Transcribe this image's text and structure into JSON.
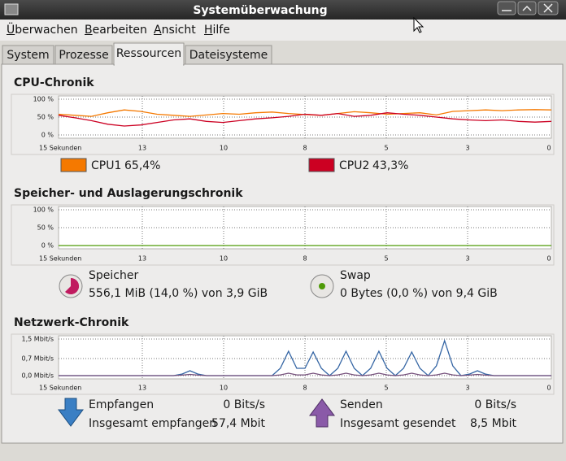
{
  "window": {
    "title": "Systemüberwachung"
  },
  "menu": [
    "Überwachen",
    "Bearbeiten",
    "Ansicht",
    "Hilfe"
  ],
  "tabs": [
    "System",
    "Prozesse",
    "Ressourcen",
    "Dateisysteme"
  ],
  "cpu": {
    "title": "CPU-Chronik",
    "ylim": [
      0,
      100
    ],
    "yticks": [
      {
        "value": 100,
        "label": "100 %"
      },
      {
        "value": 50,
        "label": "50 %"
      },
      {
        "value": 0,
        "label": "0 %"
      }
    ],
    "xlabels": [
      "15 Sekunden",
      "13",
      "10",
      "8",
      "5",
      "3",
      "0"
    ],
    "series": [
      {
        "name": "CPU1",
        "value_label": "65,4%",
        "color": "#f57900",
        "values": [
          58,
          55,
          52,
          62,
          70,
          66,
          58,
          55,
          52,
          56,
          60,
          58,
          62,
          64,
          60,
          57,
          55,
          60,
          65,
          62,
          58,
          60,
          62,
          56,
          66,
          68,
          70,
          68,
          70,
          71,
          70
        ]
      },
      {
        "name": "CPU2",
        "value_label": "43,3%",
        "color": "#cc0022",
        "values": [
          55,
          48,
          40,
          30,
          25,
          28,
          35,
          42,
          45,
          38,
          35,
          40,
          45,
          48,
          52,
          58,
          55,
          60,
          52,
          55,
          62,
          58,
          55,
          50,
          45,
          42,
          40,
          42,
          38,
          36,
          38
        ]
      }
    ]
  },
  "memory": {
    "title": "Speicher- und Auslagerungschronik",
    "ylim": [
      0,
      100
    ],
    "yticks": [
      {
        "value": 100,
        "label": "100 %"
      },
      {
        "value": 50,
        "label": "50 %"
      },
      {
        "value": 0,
        "label": "0 %"
      }
    ],
    "xlabels": [
      "15 Sekunden",
      "13",
      "10",
      "8",
      "5",
      "3",
      "0"
    ],
    "series": [
      {
        "color": "#4e9a06",
        "values": [
          0,
          0
        ]
      }
    ],
    "ram": {
      "name": "Speicher",
      "text": "556,1 MiB (14,0 %) von 3,9 GiB"
    },
    "swap": {
      "name": "Swap",
      "text": "0 Bytes (0,0 %) von 9,4 GiB"
    }
  },
  "network": {
    "title": "Netzwerk-Chronik",
    "ylim": [
      0,
      1.5
    ],
    "yticks": [
      {
        "value": 1.5,
        "label": "1,5 Mbit/s"
      },
      {
        "value": 0.7,
        "label": "0,7 Mbit/s"
      },
      {
        "value": 0,
        "label": "0,0 Mbit/s"
      }
    ],
    "xlabels": [
      "15 Sekunden",
      "13",
      "10",
      "8",
      "5",
      "3",
      "0"
    ],
    "series": [
      {
        "color": "#3465a4",
        "values": [
          0,
          0,
          0,
          0,
          0,
          0,
          0,
          0,
          0,
          0,
          0,
          0,
          0,
          0,
          0,
          0.06,
          0.2,
          0.06,
          0,
          0,
          0,
          0,
          0,
          0,
          0,
          0,
          0,
          0.3,
          1.0,
          0.3,
          0.3,
          0.97,
          0.3,
          0,
          0.3,
          1.0,
          0.3,
          0,
          0.3,
          1.0,
          0.3,
          0,
          0.3,
          0.97,
          0.3,
          0,
          0.4,
          1.43,
          0.4,
          0,
          0.06,
          0.2,
          0.06,
          0,
          0,
          0,
          0,
          0,
          0,
          0,
          0
        ]
      },
      {
        "color": "#75507b",
        "values": [
          0,
          0,
          0,
          0,
          0,
          0,
          0,
          0,
          0,
          0,
          0,
          0,
          0,
          0,
          0,
          0.02,
          0.05,
          0.02,
          0,
          0,
          0,
          0,
          0,
          0,
          0,
          0,
          0,
          0.03,
          0.1,
          0.03,
          0.03,
          0.1,
          0.03,
          0,
          0.03,
          0.1,
          0.03,
          0,
          0.03,
          0.1,
          0.03,
          0,
          0.03,
          0.1,
          0.03,
          0,
          0.03,
          0.1,
          0.03,
          0,
          0.02,
          0.05,
          0.02,
          0,
          0,
          0,
          0,
          0,
          0,
          0,
          0
        ]
      }
    ],
    "received": {
      "name": "Empfangen",
      "rate": "0 Bits/s",
      "total_label": "Insgesamt empfangen",
      "total": "57,4 Mbit"
    },
    "sent": {
      "name": "Senden",
      "rate": "0 Bits/s",
      "total_label": "Insgesamt gesendet",
      "total": "8,5 Mbit"
    }
  }
}
